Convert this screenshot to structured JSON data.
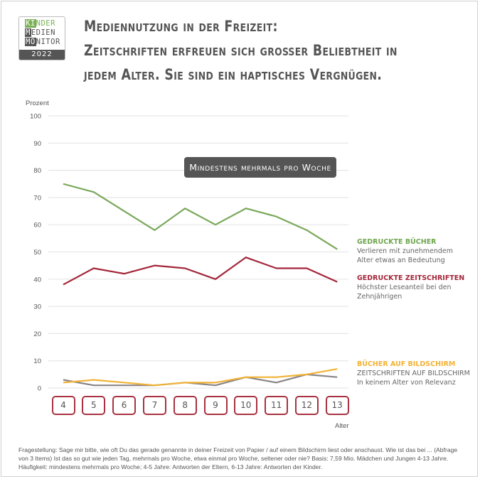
{
  "logo": {
    "line1_highlight": "KI",
    "line1_rest": "NDER",
    "line2_highlight": "M",
    "line2_rest": "EDIEN",
    "line3_highlight": "MO",
    "line3_rest": "NITOR",
    "year": "2022",
    "colors": {
      "green": "#7ab055",
      "dark": "#555555"
    }
  },
  "title": {
    "lines": [
      "Mediennutzung in der Freizeit:",
      "Zeitschriften erfreuen sich großer Beliebtheit in",
      "jedem Alter. Sie sind ein haptisches Vergnügen."
    ]
  },
  "badge": "Mindestens mehrmals pro Woche",
  "annotations": [
    {
      "heading": "GEDRUCKTE BÜCHER",
      "lines": [
        "Verlieren mit zunehmendem",
        "Alter etwas an Bedeutung"
      ],
      "color": "#6fa54e"
    },
    {
      "heading": "GEDRUCKTE ZEITSCHRIFTEN",
      "lines": [
        "Höchster Leseanteil bei den",
        "Zehnjährigen"
      ],
      "color": "#a3263a"
    },
    {
      "heading": "BÜCHER AUF BILDSCHIRM",
      "color": "#f2b234"
    },
    {
      "heading": "ZEITSCHRIFTEN AUF BILDSCHIRM",
      "lines": [
        "In keinem Alter von Relevanz"
      ],
      "color": "#666666"
    }
  ],
  "footnote": "Fragestellung: Sage mir bitte, wie oft Du das gerade genannte in deiner Freizeit von Papier / auf einem Bildschirm liest oder anschaust. Wie ist das bei ... (Abfrage von 3 Items) Ist das so gut wie jeden Tag, mehrmals pro Woche, etwa einmal pro Woche, seltener oder nie? Basis: 7,59 Mio. Mädchen und Jungen 4-13 Jahre. Häufigkeit: mindestens mehrmals pro Woche; 4-5 Jahre: Antworten der Eltern, 6-13 Jahre: Antworten der Kinder.",
  "chart_data": {
    "type": "line",
    "ylabel": "Prozent",
    "xlabel": "Alter",
    "ylim": [
      0,
      100
    ],
    "yticks": [
      "0",
      "10",
      "20",
      "30",
      "40",
      "50",
      "60",
      "70",
      "80",
      "90",
      "100"
    ],
    "grid": true,
    "categories": [
      "4",
      "5",
      "6",
      "7",
      "8",
      "9",
      "10",
      "11",
      "12",
      "13"
    ],
    "series": [
      {
        "name": "GEDRUCKTE BÜCHER",
        "color": "#7aa85a",
        "values": [
          75,
          72,
          65,
          58,
          66,
          60,
          66,
          63,
          58,
          51
        ]
      },
      {
        "name": "GEDRUCKTE ZEITSCHRIFTEN",
        "color": "#a3263a",
        "values": [
          38,
          44,
          42,
          45,
          44,
          40,
          48,
          44,
          44,
          39
        ]
      },
      {
        "name": "BÜCHER AUF BILDSCHIRM",
        "color": "#f2b234",
        "values": [
          2,
          3,
          2,
          1,
          2,
          2,
          4,
          4,
          5,
          7
        ]
      },
      {
        "name": "ZEITSCHRIFTEN AUF BILDSCHIRM",
        "color": "#8a8585",
        "values": [
          3,
          1,
          1,
          1,
          2,
          1,
          4,
          2,
          5,
          4
        ]
      }
    ]
  }
}
